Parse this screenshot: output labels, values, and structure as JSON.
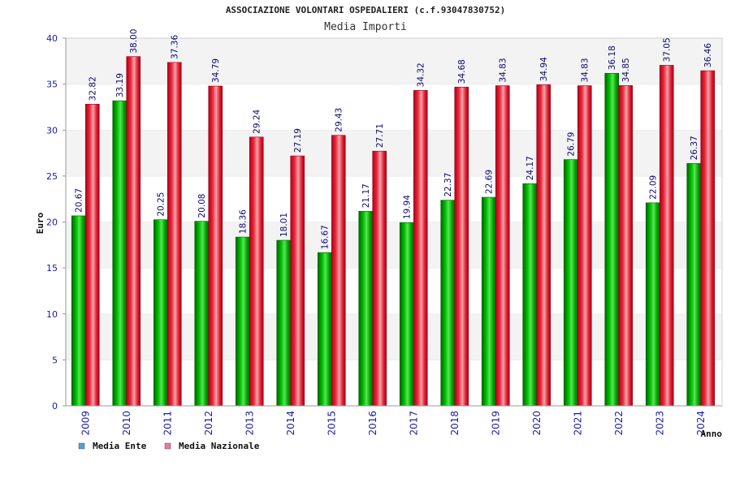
{
  "chart_data": {
    "type": "bar",
    "title": "ASSOCIAZIONE VOLONTARI OSPEDALIERI (c.f.93047830752)",
    "subtitle": "Media Importi",
    "ylabel": "Euro",
    "xlabel": "Anno",
    "ylim": [
      0,
      40
    ],
    "yticks": [
      0,
      5,
      10,
      15,
      20,
      25,
      30,
      35,
      40
    ],
    "grid": "horizontal bands",
    "legend_position": "bottom-left",
    "categories": [
      "2009",
      "2010",
      "2011",
      "2012",
      "2013",
      "2014",
      "2015",
      "2016",
      "2017",
      "2018",
      "2019",
      "2020",
      "2021",
      "2022",
      "2023",
      "2024"
    ],
    "series": [
      {
        "name": "Media Ente",
        "color": "#00a000",
        "legend_color": "#5b9bd5",
        "values": [
          20.67,
          33.19,
          20.25,
          20.08,
          18.36,
          18.01,
          16.67,
          21.17,
          19.94,
          22.37,
          22.69,
          24.17,
          26.79,
          36.18,
          22.09,
          26.37
        ]
      },
      {
        "name": "Media Nazionale",
        "color": "#e0202f",
        "legend_color": "#e57aa8",
        "values": [
          32.82,
          38.0,
          37.36,
          34.79,
          29.24,
          27.19,
          29.43,
          27.71,
          34.32,
          34.68,
          34.83,
          34.94,
          34.83,
          34.85,
          37.05,
          36.46
        ]
      }
    ]
  }
}
